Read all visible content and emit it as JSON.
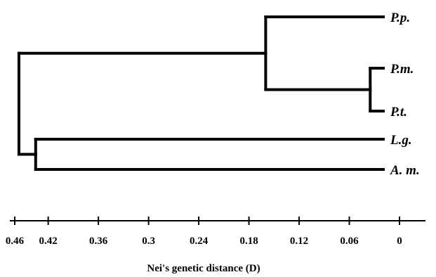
{
  "axis": {
    "title": "Nei's genetic distance (D)",
    "ticks": [
      0.46,
      0.42,
      0.36,
      0.3,
      0.24,
      0.18,
      0.12,
      0.06,
      0
    ],
    "tick_labels": [
      "0.46",
      "0.42",
      "0.36",
      "0.3",
      "0.24",
      "0.18",
      "0.12",
      "0.06",
      "0"
    ],
    "reversed": true
  },
  "leaves": [
    {
      "id": "pp",
      "label": "P.p."
    },
    {
      "id": "pm",
      "label": "P.m."
    },
    {
      "id": "pt",
      "label": "P.t."
    },
    {
      "id": "lg",
      "label": "L.g."
    },
    {
      "id": "am",
      "label": "A. m."
    }
  ],
  "clusters": [
    {
      "id": "pm_pt",
      "children": [
        "pm",
        "pt"
      ],
      "distance": 0.035
    },
    {
      "id": "pp_pm_pt",
      "children": [
        "pp",
        "pm_pt"
      ],
      "distance": 0.16
    },
    {
      "id": "lg_am",
      "children": [
        "lg",
        "am"
      ],
      "distance": 0.435
    },
    {
      "id": "root",
      "children": [
        "pp_pm_pt",
        "lg_am"
      ],
      "distance": 0.455
    }
  ],
  "colors": {
    "line": "#000000",
    "background": "#ffffff"
  }
}
